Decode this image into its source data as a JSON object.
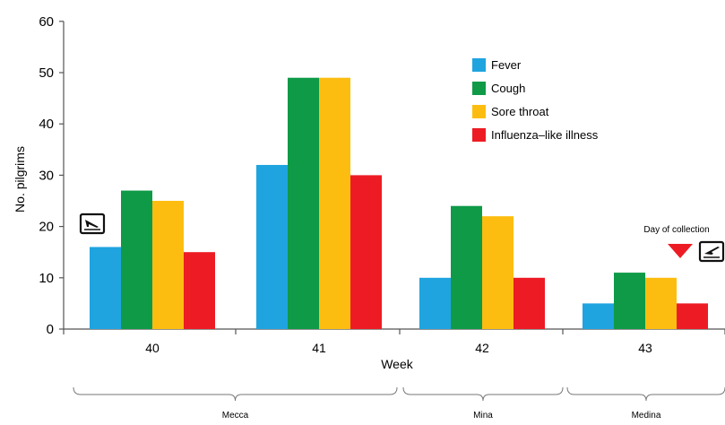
{
  "chart_data": {
    "type": "bar",
    "categories": [
      "40",
      "41",
      "42",
      "43"
    ],
    "series": [
      {
        "name": "Fever",
        "color": "#1fa4e0",
        "values": [
          16,
          32,
          10,
          5
        ]
      },
      {
        "name": "Cough",
        "color": "#0f9a48",
        "values": [
          27,
          49,
          24,
          11
        ]
      },
      {
        "name": "Sore throat",
        "color": "#fcbd10",
        "values": [
          25,
          49,
          22,
          10
        ]
      },
      {
        "name": "Influenza–like illness",
        "color": "#ed1c24",
        "values": [
          15,
          30,
          10,
          5
        ]
      }
    ],
    "xlabel": "Week",
    "ylabel": "No. pilgrims",
    "ylim": [
      0,
      60
    ],
    "yticks": [
      0,
      10,
      20,
      30,
      40,
      50,
      60
    ],
    "grid": false,
    "legend_position": "top-right",
    "regions": [
      {
        "label": "Mecca",
        "weeks": [
          "40",
          "41"
        ]
      },
      {
        "label": "Mina",
        "weeks": [
          "42"
        ]
      },
      {
        "label": "Medina",
        "weeks": [
          "43"
        ]
      }
    ],
    "annotations": [
      {
        "text": "Day of collection",
        "week": "43",
        "marker": "red-down-triangle"
      },
      {
        "icon": "airplane-arrival-icon",
        "week": "40"
      },
      {
        "icon": "airplane-departure-icon",
        "week": "43"
      }
    ]
  }
}
